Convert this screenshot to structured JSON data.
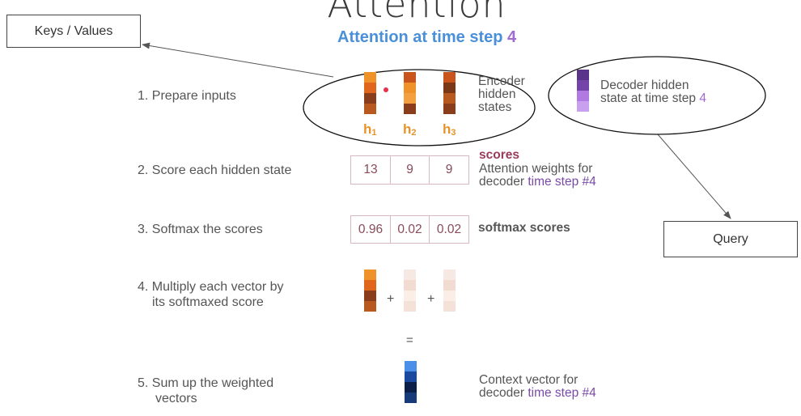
{
  "header": {
    "title": "Attention",
    "subtitle": "Attention at time step",
    "subtitle_step": "4"
  },
  "callouts": {
    "keys_values": "Keys / Values",
    "query": "Query"
  },
  "steps": [
    {
      "label": "1.  Prepare inputs"
    },
    {
      "label": "2.  Score each hidden state"
    },
    {
      "label": "3.  Softmax the scores"
    },
    {
      "label_line1": "4. Multiply each vector by",
      "label_line2": "its softmaxed score"
    },
    {
      "label_line1": "5. Sum up the weighted",
      "label_line2": "vectors"
    }
  ],
  "encoder": {
    "desc_line1": "Encoder",
    "desc_line2": "hidden",
    "desc_line3": "states",
    "labels": [
      "h",
      "h",
      "h"
    ],
    "subscripts": [
      "1",
      "2",
      "3"
    ]
  },
  "decoder": {
    "desc_line1": "Decoder hidden",
    "desc_line2": "state at time step",
    "desc_step": "4"
  },
  "scores": {
    "values": [
      "13",
      "9",
      "9"
    ],
    "title": "scores",
    "desc_line1": "Attention weights for",
    "desc_line2_a": "decoder",
    "desc_line2_b": "time step #4"
  },
  "softmax": {
    "values": [
      "0.96",
      "0.02",
      "0.02"
    ],
    "title": "softmax scores"
  },
  "operators": {
    "plus": "+",
    "equals": "="
  },
  "context": {
    "desc_line1": "Context vector for",
    "desc_line2_a": "decoder",
    "desc_line2_b": "time step #4"
  },
  "colors": {
    "encoder_h1": [
      "#f0922a",
      "#e0661e",
      "#8a3d1a",
      "#b85a20"
    ],
    "encoder_h2": [
      "#c9551c",
      "#f0922a",
      "#f4a040",
      "#8a3d1a"
    ],
    "encoder_h3": [
      "#c9551c",
      "#7a3818",
      "#b85a20",
      "#8a3d1a"
    ],
    "decoder": [
      "#5a3488",
      "#7444a8",
      "#b07ae0",
      "#c9a0f0"
    ],
    "weighted_h1": [
      "#f0922a",
      "#e0661e",
      "#8a3d1a",
      "#b85a20"
    ],
    "weighted_faint": [
      "#f6e9e4",
      "#f2dcd2",
      "#fbeee6",
      "#f4e2d8"
    ],
    "context": [
      "#4a90e8",
      "#1a4aa0",
      "#0a1e48",
      "#173a78"
    ],
    "subtitle_blue": "#4a90d9",
    "accent_purple": "#7a4aa8"
  }
}
